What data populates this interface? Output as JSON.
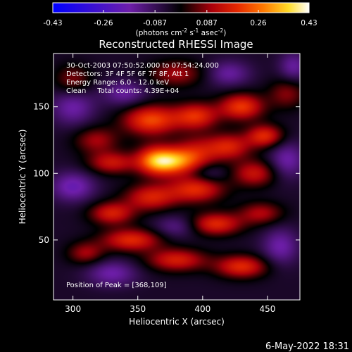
{
  "chart_data": {
    "type": "heatmap",
    "title": "Reconstructed RHESSI Image",
    "xlabel": "Heliocentric X (arcsec)",
    "ylabel": "Heliocentric Y (arcsec)",
    "xlim": [
      285,
      475
    ],
    "ylim": [
      5,
      190
    ],
    "x_ticks": [
      300,
      350,
      400,
      450
    ],
    "y_ticks": [
      50,
      100,
      150
    ],
    "colorbar": {
      "range": [
        -0.43,
        0.43
      ],
      "ticks": [
        "-0.43",
        "-0.26",
        "-0.087",
        "0.087",
        "0.26",
        "0.43"
      ],
      "unit_text": "(photons cm",
      "unit_exp1": "-2",
      "unit_mid": " s",
      "unit_exp2": "-1",
      "unit_mid2": " asec",
      "unit_exp3": "-2",
      "unit_end": ")"
    },
    "annotations": {
      "time_range": "30-Oct-2003 07:50:52.000 to 07:54:24.000",
      "detectors": "Detectors: 3F 4F 5F 6F 7F 8F, Att 1",
      "energy": "Energy Range: 6.0 - 12.0 keV",
      "clean": "Clean     Total counts: 4.39E+04",
      "peak": "Position of Peak = [368,109]"
    },
    "blobs": [
      {
        "x": 375,
        "y": 109,
        "v": 0.33,
        "sx": 13,
        "sy": 7
      },
      {
        "x": 362,
        "y": 110,
        "v": 0.18,
        "sx": 10,
        "sy": 8
      },
      {
        "x": 395,
        "y": 115,
        "v": 0.16,
        "sx": 12,
        "sy": 9
      },
      {
        "x": 360,
        "y": 140,
        "v": 0.26,
        "sx": 15,
        "sy": 8
      },
      {
        "x": 395,
        "y": 143,
        "v": 0.22,
        "sx": 12,
        "sy": 7
      },
      {
        "x": 430,
        "y": 150,
        "v": 0.24,
        "sx": 12,
        "sy": 7
      },
      {
        "x": 448,
        "y": 128,
        "v": 0.22,
        "sx": 10,
        "sy": 6
      },
      {
        "x": 420,
        "y": 120,
        "v": 0.2,
        "sx": 12,
        "sy": 7
      },
      {
        "x": 318,
        "y": 125,
        "v": 0.14,
        "sx": 12,
        "sy": 7
      },
      {
        "x": 330,
        "y": 108,
        "v": 0.18,
        "sx": 13,
        "sy": 6
      },
      {
        "x": 440,
        "y": 100,
        "v": 0.18,
        "sx": 12,
        "sy": 7
      },
      {
        "x": 395,
        "y": 88,
        "v": 0.22,
        "sx": 15,
        "sy": 7
      },
      {
        "x": 360,
        "y": 82,
        "v": 0.2,
        "sx": 14,
        "sy": 7
      },
      {
        "x": 330,
        "y": 70,
        "v": 0.2,
        "sx": 12,
        "sy": 6
      },
      {
        "x": 345,
        "y": 50,
        "v": 0.22,
        "sx": 16,
        "sy": 6
      },
      {
        "x": 410,
        "y": 62,
        "v": 0.22,
        "sx": 14,
        "sy": 6
      },
      {
        "x": 445,
        "y": 70,
        "v": 0.15,
        "sx": 12,
        "sy": 6
      },
      {
        "x": 380,
        "y": 35,
        "v": 0.2,
        "sx": 16,
        "sy": 6
      },
      {
        "x": 430,
        "y": 30,
        "v": 0.22,
        "sx": 14,
        "sy": 6
      },
      {
        "x": 310,
        "y": 40,
        "v": 0.14,
        "sx": 10,
        "sy": 6
      },
      {
        "x": 300,
        "y": 170,
        "v": 0.12,
        "sx": 10,
        "sy": 8
      },
      {
        "x": 380,
        "y": 175,
        "v": 0.14,
        "sx": 15,
        "sy": 7
      },
      {
        "x": 465,
        "y": 160,
        "v": 0.12,
        "sx": 10,
        "sy": 8
      },
      {
        "x": 300,
        "y": 90,
        "v": -0.15,
        "sx": 12,
        "sy": 8
      },
      {
        "x": 300,
        "y": 150,
        "v": -0.13,
        "sx": 12,
        "sy": 10
      },
      {
        "x": 465,
        "y": 110,
        "v": -0.13,
        "sx": 10,
        "sy": 10
      },
      {
        "x": 460,
        "y": 45,
        "v": -0.13,
        "sx": 10,
        "sy": 10
      },
      {
        "x": 330,
        "y": 25,
        "v": -0.13,
        "sx": 14,
        "sy": 7
      },
      {
        "x": 420,
        "y": 175,
        "v": -0.12,
        "sx": 12,
        "sy": 7
      },
      {
        "x": 340,
        "y": 160,
        "v": -0.12,
        "sx": 12,
        "sy": 7
      },
      {
        "x": 380,
        "y": 60,
        "v": -0.1,
        "sx": 12,
        "sy": 6
      },
      {
        "x": 405,
        "y": 100,
        "v": -0.08,
        "sx": 10,
        "sy": 5
      },
      {
        "x": 470,
        "y": 180,
        "v": -0.12,
        "sx": 8,
        "sy": 8
      }
    ]
  },
  "footer": {
    "date": "6-May-2022 18:31"
  }
}
